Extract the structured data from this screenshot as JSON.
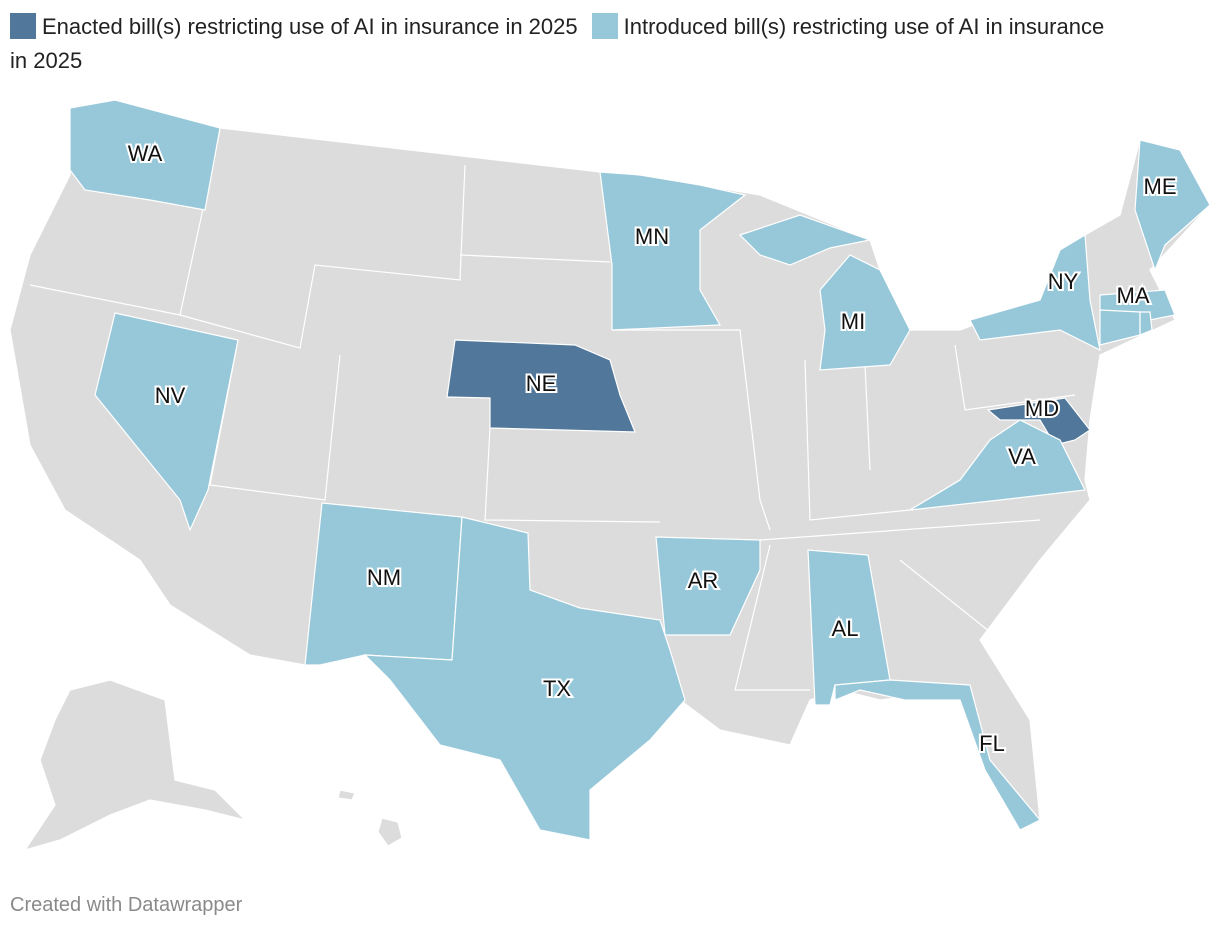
{
  "legend": [
    {
      "label": "Enacted bill(s) restricting use of AI in insurance in 2025",
      "color": "#51789a",
      "states": [
        "NE",
        "MD"
      ]
    },
    {
      "label": "Introduced bill(s) restricting use of AI in insurance in 2025",
      "color": "#97c8da",
      "states": [
        "WA",
        "NV",
        "NM",
        "TX",
        "AR",
        "AL",
        "FL",
        "MN",
        "MI",
        "VA",
        "NY",
        "ME",
        "MA",
        null,
        null
      ]
    }
  ],
  "footer": "Created with Datawrapper"
}
